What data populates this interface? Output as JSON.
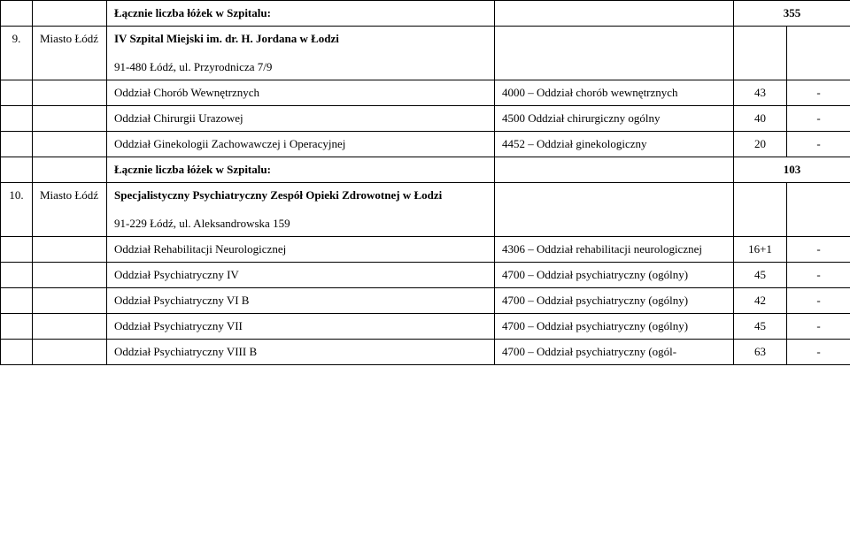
{
  "rows": {
    "r1": {
      "c3": "Łącznie liczba łóżek w Szpitalu:",
      "c5": "355"
    },
    "r2": {
      "c1": "9.",
      "c2": "Miasto Łódź",
      "c3a": "IV Szpital Miejski im. dr. H. Jordana w Łodzi",
      "c3b": "91-480 Łódź, ul. Przyrodnicza 7/9"
    },
    "r3": {
      "c3": "Oddział Chorób Wewnętrznych",
      "c4": "4000 – Oddział chorób wewnętrznych",
      "c5": "43",
      "c6": "-"
    },
    "r4": {
      "c3": "Oddział Chirurgii Urazowej",
      "c4": "4500 Oddział chirurgiczny ogólny",
      "c5": "40",
      "c6": "-"
    },
    "r5": {
      "c3": "Oddział Ginekologii Zachowawczej i Operacyjnej",
      "c4": "4452 – Oddział ginekologiczny",
      "c5": "20",
      "c6": "-"
    },
    "r6": {
      "c3": "Łącznie liczba łóżek w Szpitalu:",
      "c5": "103"
    },
    "r7": {
      "c1": "10.",
      "c2": "Miasto Łódź",
      "c3a": "Specjalistyczny Psychiatryczny Zespół Opieki Zdrowotnej w Łodzi",
      "c3b": "91-229 Łódź, ul. Aleksandrowska 159"
    },
    "r8": {
      "c3": "Oddział Rehabilitacji Neurologicznej",
      "c4": "4306 – Oddział rehabilitacji neurologicznej",
      "c5": "16+1",
      "c6": "-"
    },
    "r9": {
      "c3": "Oddział Psychiatryczny IV",
      "c4": "4700 – Oddział psychiatryczny (ogólny)",
      "c5": "45",
      "c6": "-"
    },
    "r10": {
      "c3": "Oddział Psychiatryczny VI B",
      "c4": "4700 – Oddział psychiatryczny (ogólny)",
      "c5": "42",
      "c6": "-"
    },
    "r11": {
      "c3": "Oddział Psychiatryczny VII",
      "c4": "4700 – Oddział psychiatryczny (ogólny)",
      "c5": "45",
      "c6": "-"
    },
    "r12": {
      "c3": "Oddział Psychiatryczny VIII B",
      "c4": "4700 – Oddział psychiatryczny (ogól-",
      "c5": "63",
      "c6": "-"
    }
  }
}
